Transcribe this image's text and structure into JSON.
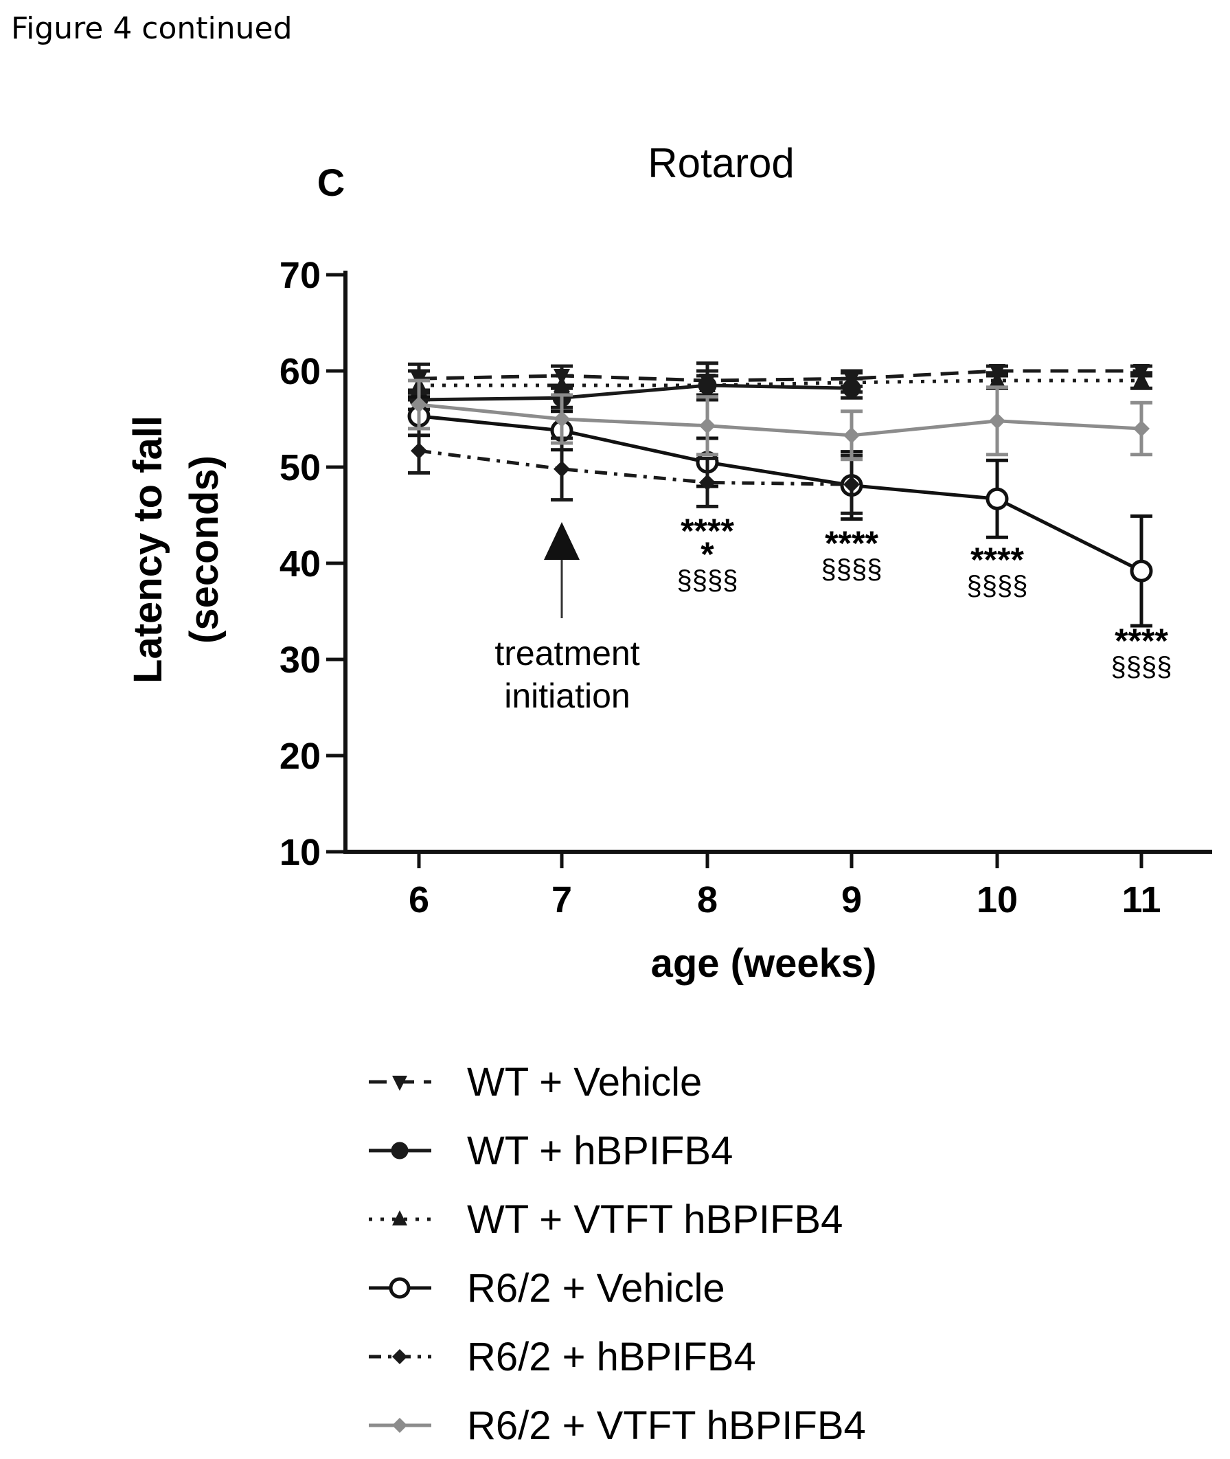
{
  "figure_caption": "Figure 4 continued",
  "panel_label": "C",
  "chart_data": {
    "type": "line",
    "title": "Rotarod",
    "xlabel": "age (weeks)",
    "ylabel_line1": "Latency to fall",
    "ylabel_line2": "(seconds)",
    "x": [
      6,
      7,
      8,
      9,
      10,
      11
    ],
    "xticks": [
      "6",
      "7",
      "8",
      "9",
      "10",
      "11"
    ],
    "yticks": [
      "10",
      "20",
      "30",
      "40",
      "50",
      "60",
      "70"
    ],
    "ylim": [
      10,
      70
    ],
    "series": [
      {
        "name": "WT + Vehicle",
        "color": "#1a1a1a",
        "dash": "26,14",
        "marker": "tri-down",
        "fill": "#1a1a1a",
        "values": [
          59.2,
          59.5,
          59.0,
          59.2,
          60.0,
          60.0
        ],
        "err": [
          1.5,
          1.0,
          1.8,
          0.8,
          0.5,
          0.5
        ]
      },
      {
        "name": "WT + hBPIFB4",
        "color": "#1a1a1a",
        "dash": "",
        "marker": "circle-filled",
        "fill": "#1a1a1a",
        "values": [
          57.0,
          57.2,
          58.5,
          58.2,
          null,
          null
        ],
        "err": [
          1.0,
          1.0,
          1.0,
          1.0,
          0,
          0
        ]
      },
      {
        "name": "WT + VTFT hBPIFB4",
        "color": "#1a1a1a",
        "dash": "5,12",
        "marker": "tri-up",
        "fill": "#1a1a1a",
        "values": [
          58.5,
          58.5,
          58.5,
          58.8,
          59.0,
          59.0
        ],
        "err": [
          1.5,
          1.0,
          1.5,
          1.0,
          0.8,
          0.8
        ]
      },
      {
        "name": "R6/2 + Vehicle",
        "color": "#111111",
        "dash": "",
        "marker": "circle-open",
        "fill": "#ffffff",
        "values": [
          55.3,
          53.8,
          50.5,
          48.1,
          46.7,
          39.2
        ],
        "err": [
          2.0,
          2.0,
          2.5,
          3.5,
          4.0,
          5.7
        ]
      },
      {
        "name": "R6/2 + hBPIFB4",
        "color": "#1a1a1a",
        "dash": "18,10,5,10",
        "marker": "diamond",
        "fill": "#1a1a1a",
        "values": [
          51.7,
          49.8,
          48.4,
          48.2,
          null,
          null
        ],
        "err": [
          2.3,
          3.2,
          2.5,
          3.0,
          0,
          0
        ]
      },
      {
        "name": "R6/2 + VTFT hBPIFB4",
        "color": "#8c8c8c",
        "dash": "",
        "marker": "diamond",
        "fill": "#8c8c8c",
        "values": [
          56.5,
          55.0,
          54.3,
          53.3,
          54.8,
          54.0
        ],
        "err": [
          2.5,
          2.5,
          3.0,
          2.5,
          3.5,
          2.7
        ]
      }
    ],
    "annotations": {
      "arrow_label_line1": "treatment",
      "arrow_label_line2": "initiation",
      "arrow_x": 7,
      "significance": [
        {
          "x": 8,
          "lines": [
            "****",
            "*",
            "§§§§"
          ]
        },
        {
          "x": 9,
          "lines": [
            "****",
            "§§§§"
          ]
        },
        {
          "x": 10,
          "lines": [
            "****",
            "§§§§"
          ]
        },
        {
          "x": 11,
          "lines": [
            "****",
            "§§§§"
          ]
        }
      ]
    }
  }
}
